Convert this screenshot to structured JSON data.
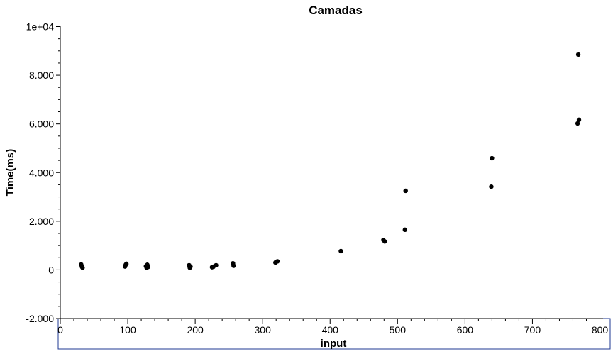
{
  "chart_data": {
    "type": "scatter",
    "title": "Camadas",
    "xlabel": "input",
    "ylabel": "Time(ms)",
    "xlim": [
      0,
      800
    ],
    "ylim": [
      -2000,
      10000
    ],
    "x_ticks": [
      {
        "value": 0,
        "label": "0"
      },
      {
        "value": 100,
        "label": "100"
      },
      {
        "value": 200,
        "label": "200"
      },
      {
        "value": 300,
        "label": "300"
      },
      {
        "value": 400,
        "label": "400"
      },
      {
        "value": 500,
        "label": "500"
      },
      {
        "value": 600,
        "label": "600"
      },
      {
        "value": 700,
        "label": "700"
      },
      {
        "value": 800,
        "label": "800"
      }
    ],
    "y_ticks": [
      {
        "value": -2000,
        "label": "-2.000"
      },
      {
        "value": 0,
        "label": "0"
      },
      {
        "value": 2000,
        "label": "2.000"
      },
      {
        "value": 4000,
        "label": "4.000"
      },
      {
        "value": 6000,
        "label": "6.000"
      },
      {
        "value": 8000,
        "label": "8.000"
      },
      {
        "value": 10000,
        "label": "1e+04"
      }
    ],
    "grid": false,
    "marker_color": "#000000",
    "series": [
      {
        "points": [
          {
            "x": 31,
            "y": 220
          },
          {
            "x": 32,
            "y": 130
          },
          {
            "x": 33,
            "y": 90
          },
          {
            "x": 96,
            "y": 140
          },
          {
            "x": 97,
            "y": 210
          },
          {
            "x": 98,
            "y": 250
          },
          {
            "x": 127,
            "y": 150
          },
          {
            "x": 128,
            "y": 90
          },
          {
            "x": 129,
            "y": 210
          },
          {
            "x": 130,
            "y": 120
          },
          {
            "x": 191,
            "y": 190
          },
          {
            "x": 192,
            "y": 90
          },
          {
            "x": 193,
            "y": 130
          },
          {
            "x": 225,
            "y": 110
          },
          {
            "x": 227,
            "y": 130
          },
          {
            "x": 231,
            "y": 190
          },
          {
            "x": 256,
            "y": 270
          },
          {
            "x": 257,
            "y": 170
          },
          {
            "x": 319,
            "y": 300
          },
          {
            "x": 320,
            "y": 330
          },
          {
            "x": 322,
            "y": 350
          },
          {
            "x": 416,
            "y": 770
          },
          {
            "x": 479,
            "y": 1230
          },
          {
            "x": 481,
            "y": 1170
          },
          {
            "x": 511,
            "y": 1650
          },
          {
            "x": 512,
            "y": 3250
          },
          {
            "x": 639,
            "y": 3420
          },
          {
            "x": 640,
            "y": 4590
          },
          {
            "x": 767,
            "y": 6020
          },
          {
            "x": 769,
            "y": 6170
          },
          {
            "x": 768,
            "y": 8850
          }
        ]
      }
    ]
  }
}
